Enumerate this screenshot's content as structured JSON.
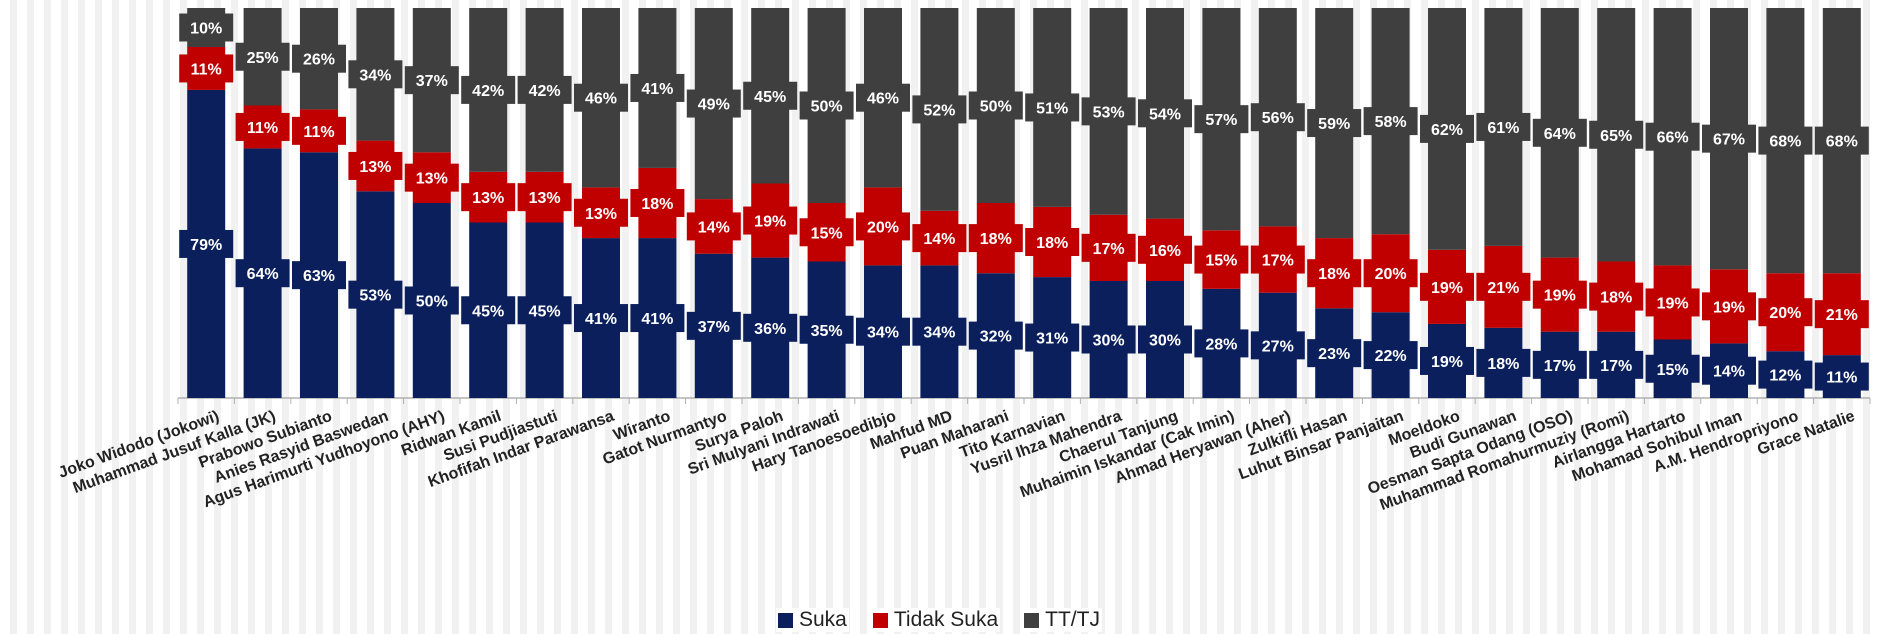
{
  "chart_data": {
    "type": "bar",
    "stacked": true,
    "categories": [
      "Joko Widodo (Jokowi)",
      "Muhammad Jusuf Kalla (JK)",
      "Prabowo Subianto",
      "Anies Rasyid Baswedan",
      "Agus Harimurti Yudhoyono (AHY)",
      "Ridwan Kamil",
      "Susi Pudjiastuti",
      "Khofifah Indar Parawansa",
      "Wiranto",
      "Gatot Nurmantyo",
      "Surya Paloh",
      "Sri Mulyani Indrawati",
      "Hary Tanoesoedibjo",
      "Mahfud MD",
      "Puan Maharani",
      "Tito Karnavian",
      "Yusril Ihza Mahendra",
      "Chaerul Tanjung",
      "Muhaimin Iskandar (Cak Imin)",
      "Ahmad Heryawan (Aher)",
      "Zulkifli Hasan",
      "Luhut Binsar Panjaitan",
      "Moeldoko",
      "Budi Gunawan",
      "Oesman Sapta Odang (OSO)",
      "Muhammad Romahurmuziy (Romi)",
      "Airlangga Hartarto",
      "Mohamad Sohibul Iman",
      "A.M. Hendropriyono",
      "Grace Natalie"
    ],
    "series": [
      {
        "name": "Suka",
        "color": "#0a1f5c",
        "values": [
          79,
          64,
          63,
          53,
          50,
          45,
          45,
          41,
          41,
          37,
          36,
          35,
          34,
          34,
          32,
          31,
          30,
          30,
          28,
          27,
          23,
          22,
          19,
          18,
          17,
          17,
          15,
          14,
          12,
          11
        ]
      },
      {
        "name": "Tidak Suka",
        "color": "#c00000",
        "values": [
          11,
          11,
          11,
          13,
          13,
          13,
          13,
          13,
          18,
          14,
          19,
          15,
          20,
          14,
          18,
          18,
          17,
          16,
          15,
          17,
          18,
          20,
          19,
          21,
          19,
          18,
          19,
          19,
          20,
          21
        ]
      },
      {
        "name": "TT/TJ",
        "color": "#3f3f3f",
        "values": [
          10,
          25,
          26,
          34,
          37,
          42,
          42,
          46,
          41,
          49,
          45,
          50,
          46,
          52,
          50,
          51,
          53,
          54,
          57,
          56,
          59,
          58,
          62,
          61,
          64,
          65,
          66,
          67,
          68,
          68
        ]
      }
    ],
    "value_suffix": "%",
    "ylim": [
      0,
      100
    ],
    "grid": false,
    "legend_position": "bottom-center"
  },
  "legend": {
    "items": [
      {
        "label": "Suka",
        "color": "#0a1f5c"
      },
      {
        "label": "Tidak Suka",
        "color": "#c00000"
      },
      {
        "label": "TT/TJ",
        "color": "#3f3f3f"
      }
    ]
  }
}
